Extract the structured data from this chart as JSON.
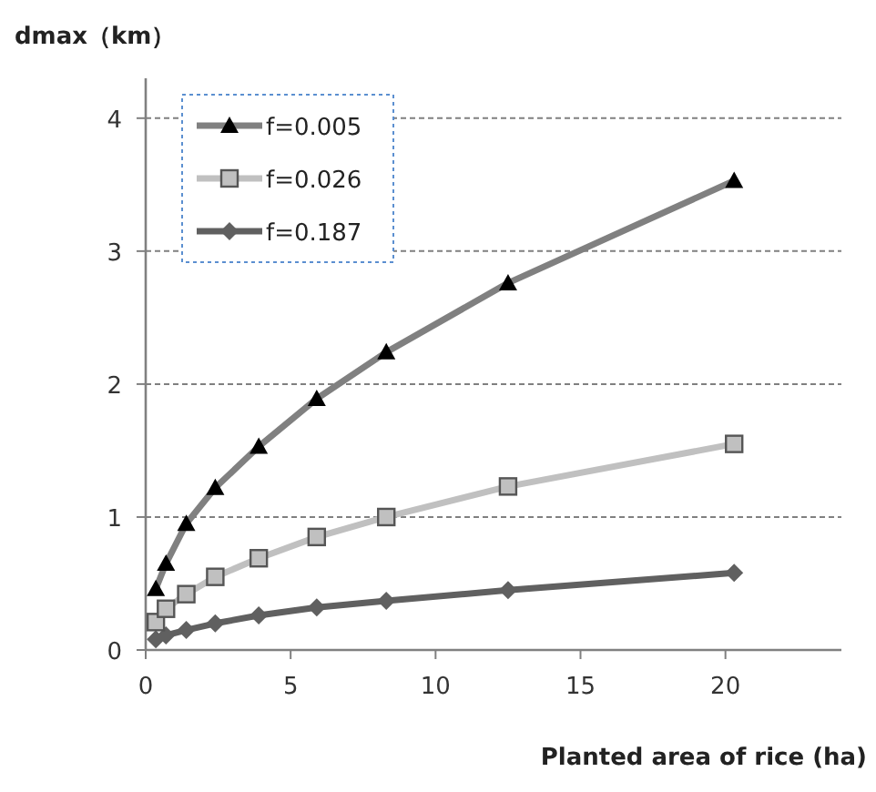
{
  "chart_data": {
    "type": "line",
    "xlabel": "Planted area of rice (ha)",
    "ylabel": "dmax（km）",
    "x": [
      0.35,
      0.7,
      1.4,
      2.4,
      3.9,
      5.9,
      8.3,
      12.5,
      20.3
    ],
    "series": [
      {
        "name": "f=0.005",
        "color": "#808080",
        "marker": "triangle",
        "values": [
          0.46,
          0.65,
          0.95,
          1.22,
          1.53,
          1.89,
          2.24,
          2.76,
          3.53
        ]
      },
      {
        "name": "f=0.026",
        "color": "#c0c0c0",
        "marker": "square",
        "values": [
          0.21,
          0.31,
          0.42,
          0.55,
          0.69,
          0.85,
          1.0,
          1.23,
          1.55
        ]
      },
      {
        "name": "f=0.187",
        "color": "#606060",
        "marker": "diamond",
        "values": [
          0.08,
          0.11,
          0.15,
          0.2,
          0.26,
          0.32,
          0.37,
          0.45,
          0.58
        ]
      }
    ],
    "xlim": [
      0,
      24
    ],
    "xticks": [
      0,
      5,
      10,
      15,
      20
    ],
    "ylim": [
      0,
      4.3
    ],
    "yticks": [
      0,
      1,
      2,
      3,
      4
    ],
    "grid": "y",
    "legend": "top left"
  }
}
